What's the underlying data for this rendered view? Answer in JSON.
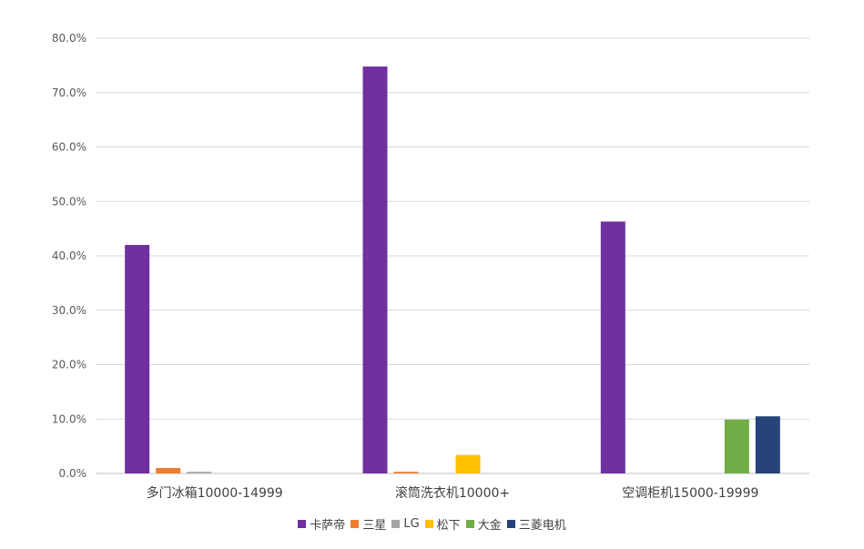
{
  "chart_data": {
    "type": "bar",
    "title": "",
    "xlabel": "",
    "ylabel": "",
    "ylim": [
      0,
      80
    ],
    "y_ticks": [
      "0.0%",
      "10.0%",
      "20.0%",
      "30.0%",
      "40.0%",
      "50.0%",
      "60.0%",
      "70.0%",
      "80.0%"
    ],
    "grid": true,
    "legend_position": "bottom",
    "categories": [
      "多门冰箱10000-14999",
      "滚筒洗衣机10000+",
      "空调柜机15000-19999"
    ],
    "series": [
      {
        "name": "卡萨帝",
        "color": "#7030A0",
        "values": [
          42.0,
          74.8,
          46.3
        ]
      },
      {
        "name": "三星",
        "color": "#ED7D31",
        "values": [
          1.0,
          0.3,
          null
        ]
      },
      {
        "name": "LG",
        "color": "#A5A5A5",
        "values": [
          0.3,
          null,
          null
        ]
      },
      {
        "name": "松下",
        "color": "#FFC000",
        "values": [
          null,
          3.4,
          null
        ]
      },
      {
        "name": "大金",
        "color": "#70AD47",
        "values": [
          null,
          null,
          9.9
        ]
      },
      {
        "name": "三菱电机",
        "color": "#264478",
        "values": [
          null,
          null,
          10.5
        ]
      }
    ]
  }
}
